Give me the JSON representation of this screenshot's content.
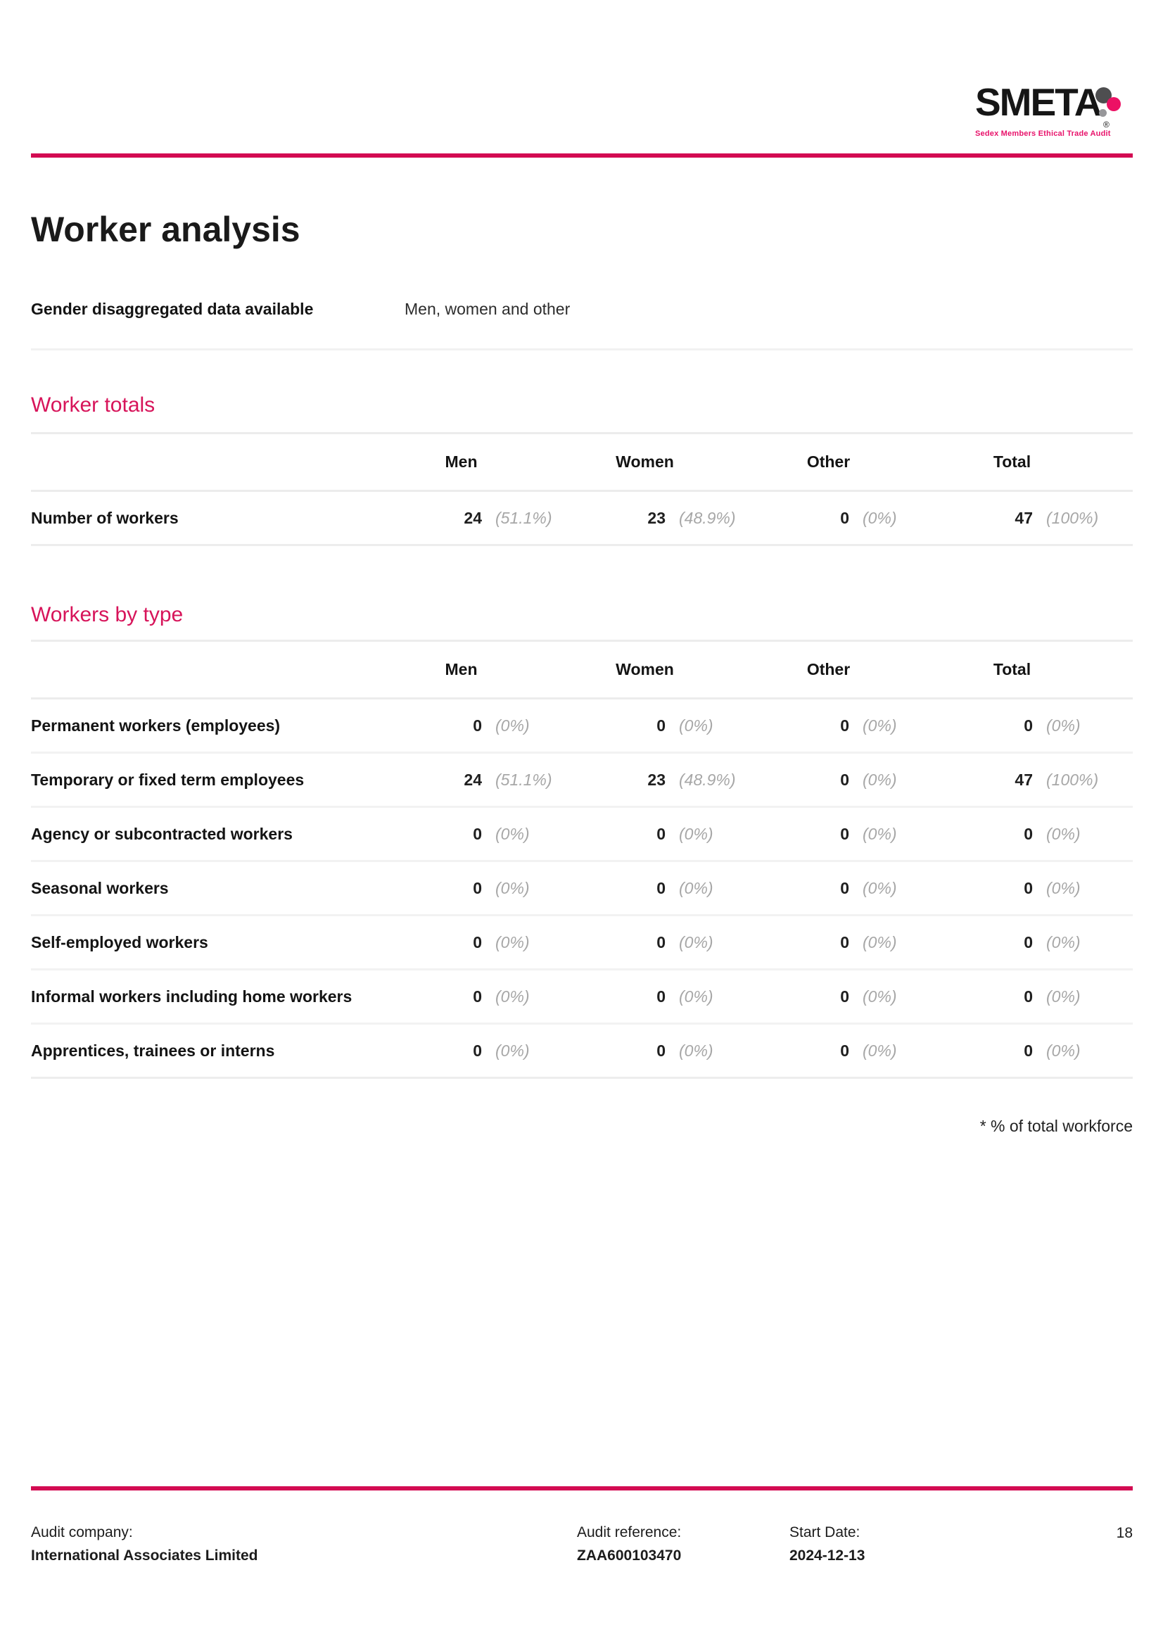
{
  "colors": {
    "brand_rule_pink": "#d30b52",
    "section_heading_pink": "#d7145a",
    "logo_tagline_pink": "#e8136b",
    "logo_dot_pink": "#ec1164",
    "logo_dot_dark_gray": "#4e4e50",
    "logo_dot_light_gray": "#97979a",
    "percent_text_gray": "#a7a7a7",
    "divider_gray": "#ececec"
  },
  "logo": {
    "wordmark": "SMETA",
    "registered_mark": "®",
    "tagline": "Sedex Members Ethical Trade Audit"
  },
  "title": "Worker analysis",
  "gender_row": {
    "label": "Gender disaggregated data available",
    "value": "Men, women and other"
  },
  "worker_totals": {
    "heading": "Worker totals",
    "columns": [
      "Men",
      "Women",
      "Other",
      "Total"
    ],
    "rows": [
      {
        "label": "Number of workers",
        "cells": [
          {
            "n": "24",
            "pct": "(51.1%)"
          },
          {
            "n": "23",
            "pct": "(48.9%)"
          },
          {
            "n": "0",
            "pct": "(0%)"
          },
          {
            "n": "47",
            "pct": "(100%)"
          }
        ]
      }
    ]
  },
  "workers_by_type": {
    "heading": "Workers by type",
    "columns": [
      "Men",
      "Women",
      "Other",
      "Total"
    ],
    "rows": [
      {
        "label": "Permanent workers (employees)",
        "cells": [
          {
            "n": "0",
            "pct": "(0%)"
          },
          {
            "n": "0",
            "pct": "(0%)"
          },
          {
            "n": "0",
            "pct": "(0%)"
          },
          {
            "n": "0",
            "pct": "(0%)"
          }
        ]
      },
      {
        "label": "Temporary or fixed term employees",
        "cells": [
          {
            "n": "24",
            "pct": "(51.1%)"
          },
          {
            "n": "23",
            "pct": "(48.9%)"
          },
          {
            "n": "0",
            "pct": "(0%)"
          },
          {
            "n": "47",
            "pct": "(100%)"
          }
        ]
      },
      {
        "label": "Agency or subcontracted workers",
        "cells": [
          {
            "n": "0",
            "pct": "(0%)"
          },
          {
            "n": "0",
            "pct": "(0%)"
          },
          {
            "n": "0",
            "pct": "(0%)"
          },
          {
            "n": "0",
            "pct": "(0%)"
          }
        ]
      },
      {
        "label": "Seasonal workers",
        "cells": [
          {
            "n": "0",
            "pct": "(0%)"
          },
          {
            "n": "0",
            "pct": "(0%)"
          },
          {
            "n": "0",
            "pct": "(0%)"
          },
          {
            "n": "0",
            "pct": "(0%)"
          }
        ]
      },
      {
        "label": "Self-employed workers",
        "cells": [
          {
            "n": "0",
            "pct": "(0%)"
          },
          {
            "n": "0",
            "pct": "(0%)"
          },
          {
            "n": "0",
            "pct": "(0%)"
          },
          {
            "n": "0",
            "pct": "(0%)"
          }
        ]
      },
      {
        "label": "Informal workers including home workers",
        "cells": [
          {
            "n": "0",
            "pct": "(0%)"
          },
          {
            "n": "0",
            "pct": "(0%)"
          },
          {
            "n": "0",
            "pct": "(0%)"
          },
          {
            "n": "0",
            "pct": "(0%)"
          }
        ]
      },
      {
        "label": "Apprentices, trainees or interns",
        "cells": [
          {
            "n": "0",
            "pct": "(0%)"
          },
          {
            "n": "0",
            "pct": "(0%)"
          },
          {
            "n": "0",
            "pct": "(0%)"
          },
          {
            "n": "0",
            "pct": "(0%)"
          }
        ]
      }
    ]
  },
  "footnote": "* % of total workforce",
  "footer": {
    "audit_company_label": "Audit company:",
    "audit_company_value": "International Associates Limited",
    "audit_reference_label": "Audit reference:",
    "audit_reference_value": "ZAA600103470",
    "start_date_label": "Start Date:",
    "start_date_value": "2024-12-13",
    "page_number": "18"
  }
}
